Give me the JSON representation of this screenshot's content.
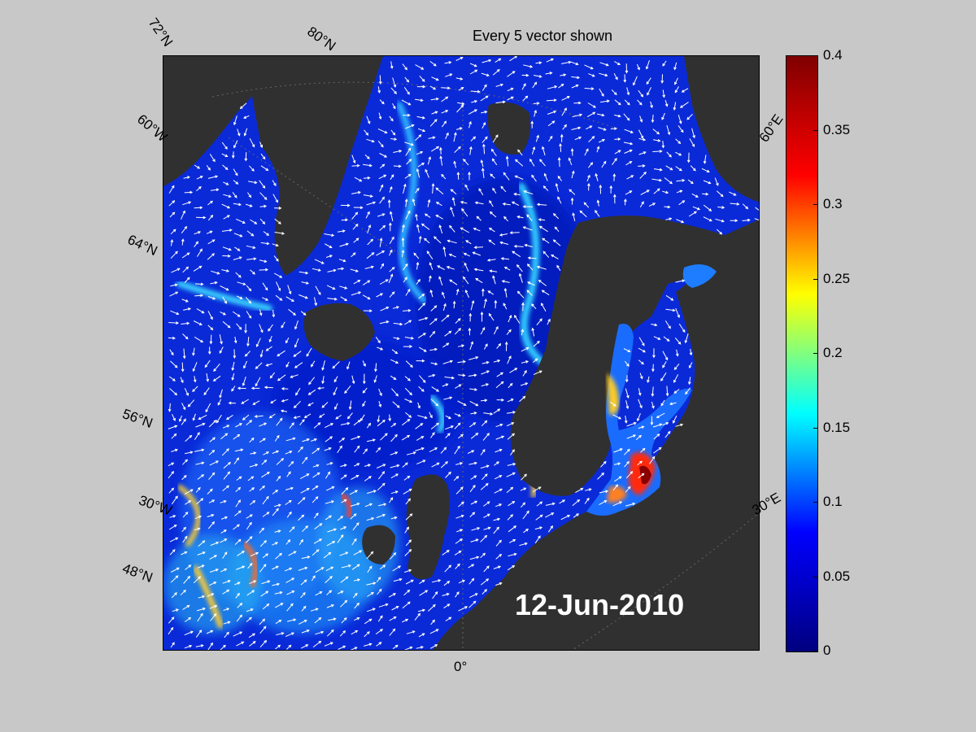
{
  "title": "Every 5 vector shown",
  "date_stamp": "12-Jun-2010",
  "graticule_labels": {
    "lat_72n": "72°N",
    "lon_60w": "60°W",
    "lat_64n": "64°N",
    "lat_56n": "56°N",
    "lon_30w": "30°W",
    "lat_48n": "48°N",
    "lat_80n": "80°N",
    "lon_0": "0°",
    "lon_60e_top": "60°E",
    "lon_30e": "30°E"
  },
  "colorbar": {
    "ticks": [
      "0.4",
      "0.35",
      "0.3",
      "0.25",
      "0.2",
      "0.15",
      "0.1",
      "0.05",
      "0"
    ],
    "range": [
      0,
      0.4
    ],
    "colormap": [
      "#00007f",
      "#0000ff",
      "#00ffff",
      "#ffff00",
      "#ff0000",
      "#7f0000"
    ]
  },
  "colors": {
    "land": "#303030",
    "ocean_base": "#0a2ad8",
    "background": "#c8c8c8"
  }
}
